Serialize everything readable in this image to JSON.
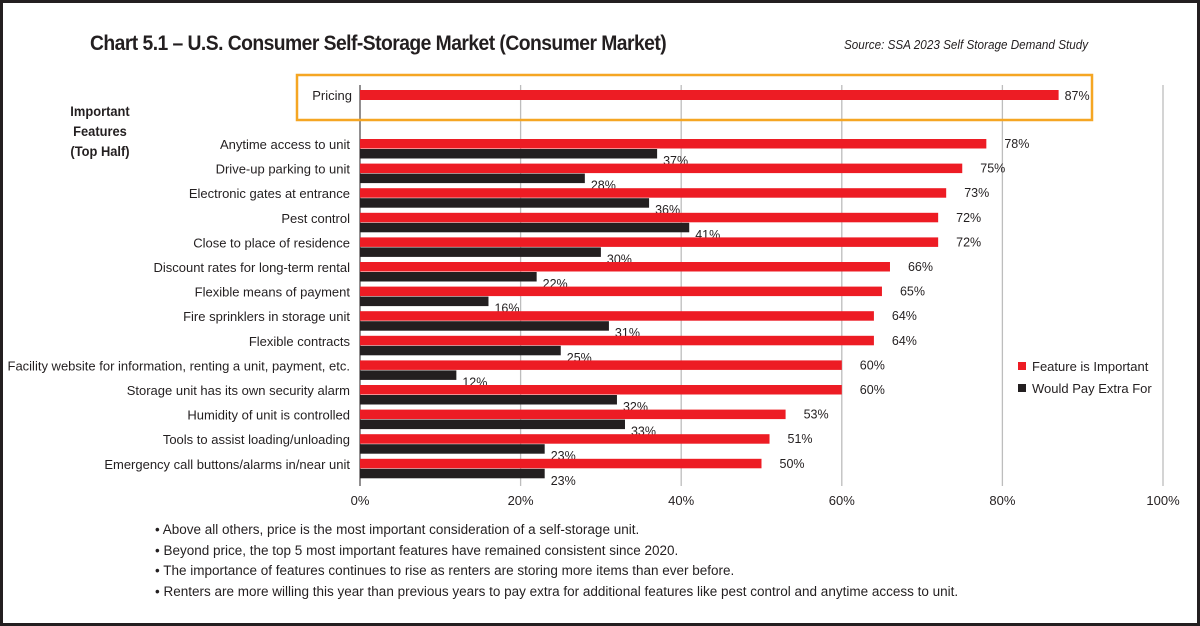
{
  "chart_data": {
    "type": "bar",
    "orientation": "horizontal",
    "title": "Chart 5.1 – U.S. Consumer Self-Storage Market (Consumer Market)",
    "source": "Source: SSA 2023 Self Storage Demand Study",
    "group_label": "Important Features (Top Half)",
    "highlight": {
      "category": "Pricing",
      "value": 87,
      "box_color": "#f5a623"
    },
    "categories": [
      "Anytime access to unit",
      "Drive-up parking to unit",
      "Electronic gates at entrance",
      "Pest control",
      "Close to place of residence",
      "Discount rates for long-term rental",
      "Flexible means of payment",
      "Fire sprinklers in storage unit",
      "Flexible contracts",
      "Facility website for information, renting a unit, payment, etc.",
      "Storage unit has its own security alarm",
      "Humidity of unit is controlled",
      "Tools to assist loading/unloading",
      "Emergency call buttons/alarms in/near unit"
    ],
    "series": [
      {
        "name": "Feature is Important",
        "color": "#ed1c24",
        "values": [
          78,
          75,
          73,
          72,
          72,
          66,
          65,
          64,
          64,
          60,
          60,
          53,
          51,
          50
        ]
      },
      {
        "name": "Would Pay Extra For",
        "color": "#231f20",
        "values": [
          37,
          28,
          36,
          41,
          30,
          22,
          16,
          31,
          25,
          12,
          32,
          33,
          23,
          23
        ]
      }
    ],
    "xlim": [
      0,
      100
    ],
    "xticks": [
      "0%",
      "20%",
      "40%",
      "60%",
      "80%",
      "100%"
    ],
    "grid": true,
    "legend": "right"
  },
  "notes": [
    "• Above all others, price is the most important consideration of a self-storage unit.",
    "• Beyond price, the top 5 most important features have remained consistent since 2020.",
    "• The importance of features continues to rise as renters are storing more items than ever before.",
    "• Renters are more willing this year than previous years to pay extra for additional features like pest control and anytime access to unit."
  ]
}
